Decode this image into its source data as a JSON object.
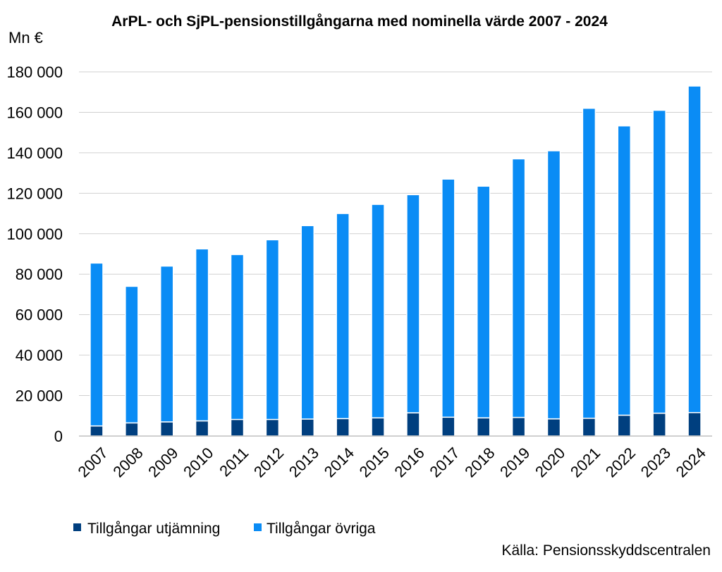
{
  "chart_data": {
    "type": "bar",
    "stacked": true,
    "title": "ArPL- och SjPL-pensionstillgångarna med nominella värde 2007 - 2024",
    "ylabel": "Mn €",
    "xlabel": "",
    "ylim": [
      0,
      180000
    ],
    "yticks": [
      "0",
      "20 000",
      "40 000",
      "60 000",
      "80 000",
      "100 000",
      "120 000",
      "140 000",
      "160 000",
      "180 000"
    ],
    "ytick_values": [
      0,
      20000,
      40000,
      60000,
      80000,
      100000,
      120000,
      140000,
      160000,
      180000
    ],
    "grid": true,
    "legend_position": "bottom-left",
    "categories": [
      "2007",
      "2008",
      "2009",
      "2010",
      "2011",
      "2012",
      "2013",
      "2014",
      "2015",
      "2016",
      "2017",
      "2018",
      "2019",
      "2020",
      "2021",
      "2022",
      "2023",
      "2024"
    ],
    "series": [
      {
        "name": "Tillgångar utjämning",
        "color": "#003f7f",
        "values": [
          5000,
          6500,
          7000,
          7500,
          8200,
          8200,
          8400,
          8600,
          9000,
          11500,
          9300,
          9000,
          9200,
          8500,
          8800,
          10300,
          11300,
          11600
        ]
      },
      {
        "name": "Tillgångar övriga",
        "color": "#0a8cf5",
        "values": [
          80500,
          67500,
          77000,
          85000,
          81500,
          88800,
          95600,
          101400,
          105500,
          107800,
          117700,
          114500,
          127800,
          132500,
          153200,
          143000,
          149700,
          161400
        ]
      }
    ],
    "source": "Källa: Pensionsskyddscentralen"
  }
}
